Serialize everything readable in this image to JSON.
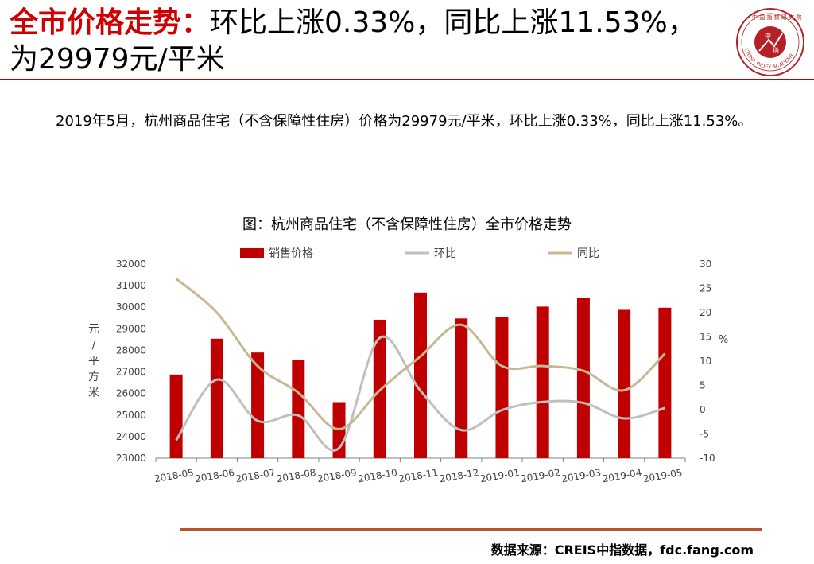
{
  "header": {
    "title_highlight": "全市价格走势：",
    "title_rest": "环比上涨0.33%，同比上涨11.53%，为29979元/平米"
  },
  "body_text": "2019年5月，杭州商品住宅（不含保障性住房）价格为29979元/平米，环比上涨0.33%，同比上涨11.53%。",
  "source_text": "数据来源：CREIS中指数据，fdc.fang.com",
  "colors": {
    "accent_red": "#c00000",
    "bar_red": "#c00000",
    "mom_line": "#bfbfbf",
    "yoy_line": "#c4b993",
    "bottom_rule": "#b8562a"
  },
  "chart_data": {
    "type": "bar",
    "title": "图：杭州商品住宅（不含保障性住房）全市价格走势",
    "categories": [
      "2018-05",
      "2018-06",
      "2018-07",
      "2018-08",
      "2018-09",
      "2018-10",
      "2018-11",
      "2018-12",
      "2019-01",
      "2019-02",
      "2019-03",
      "2019-04",
      "2019-05"
    ],
    "ylabel": "元/平方米",
    "y2label": "%",
    "ylim": [
      23000,
      32000
    ],
    "y2lim": [
      -10,
      30
    ],
    "yticks": [
      23000,
      24000,
      25000,
      26000,
      27000,
      28000,
      29000,
      30000,
      31000,
      32000
    ],
    "y2ticks": [
      -10,
      -5,
      0,
      5,
      10,
      15,
      20,
      25,
      30
    ],
    "legend_position": "top",
    "grid": false,
    "series": [
      {
        "name": "销售价格",
        "kind": "bar",
        "axis": "left",
        "values": [
          26880,
          28540,
          27900,
          27560,
          25600,
          29420,
          30680,
          29480,
          29530,
          30030,
          30440,
          29880,
          29979
        ]
      },
      {
        "name": "环比",
        "kind": "line",
        "axis": "right",
        "values": [
          -6.3,
          6.2,
          -2.3,
          -1.2,
          -7.9,
          14.8,
          3.9,
          -4.2,
          -0.1,
          1.6,
          1.4,
          -1.8,
          0.33
        ]
      },
      {
        "name": "同比",
        "kind": "line",
        "axis": "right",
        "values": [
          27.0,
          20.0,
          9.0,
          3.5,
          -4.0,
          4.0,
          11.0,
          17.5,
          9.0,
          9.0,
          8.0,
          4.0,
          11.53
        ]
      }
    ]
  }
}
